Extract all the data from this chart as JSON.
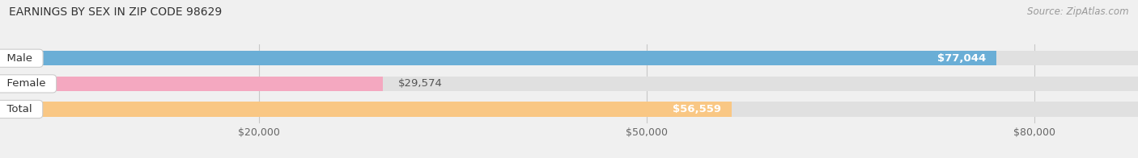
{
  "title": "EARNINGS BY SEX IN ZIP CODE 98629",
  "source": "Source: ZipAtlas.com",
  "categories": [
    "Male",
    "Female",
    "Total"
  ],
  "values": [
    77044,
    29574,
    56559
  ],
  "bar_colors": [
    "#6aaed6",
    "#f4a8c0",
    "#f9c784"
  ],
  "value_labels": [
    "$77,044",
    "$29,574",
    "$56,559"
  ],
  "xmin": 0,
  "xmax": 88000,
  "xticks": [
    20000,
    50000,
    80000
  ],
  "xticklabels": [
    "$20,000",
    "$50,000",
    "$80,000"
  ],
  "title_fontsize": 10,
  "label_fontsize": 9.5,
  "tick_fontsize": 9,
  "source_fontsize": 8.5,
  "background_color": "#f0f0f0",
  "bar_bg_color": "#e0e0e0",
  "bar_height": 0.58,
  "value_label_inside_color": "#ffffff",
  "value_label_outside_color": "#555555",
  "grid_color": "#c8c8c8",
  "cat_label_color": "#333333"
}
